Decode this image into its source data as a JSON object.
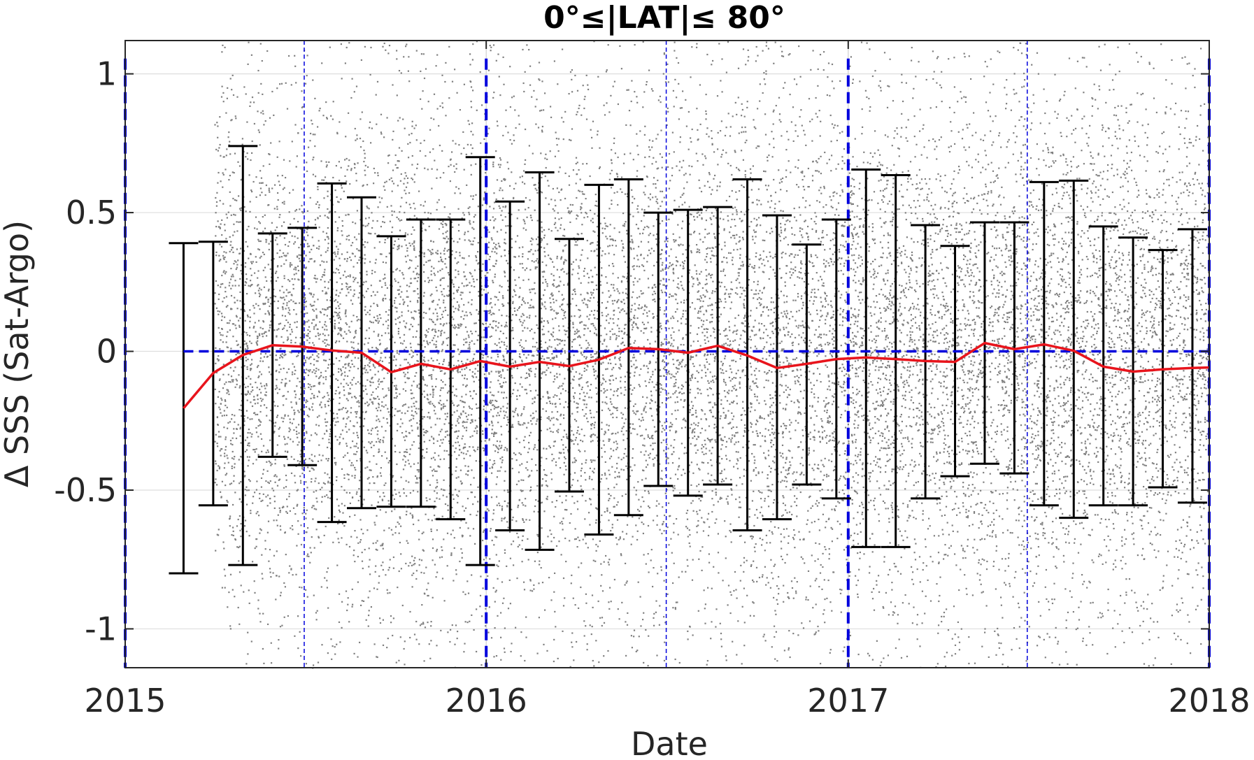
{
  "chart_data": {
    "type": "scatter",
    "title": "0°≤|LAT|≤ 80°",
    "xlabel": "Date",
    "ylabel": "Δ SSS (Sat-Argo)",
    "xlim": [
      "2015-01-01",
      "2018-01-01"
    ],
    "ylim": [
      -1.14,
      1.12
    ],
    "xticks": [
      "2015",
      "2016",
      "2017",
      "2018"
    ],
    "yticks": [
      {
        "value": 1,
        "label": "1"
      },
      {
        "value": 0.5,
        "label": "0.5"
      },
      {
        "value": 0,
        "label": "0"
      },
      {
        "value": -0.5,
        "label": "-0.5"
      },
      {
        "value": -1,
        "label": "-1"
      }
    ],
    "grid": true,
    "scatter_series": {
      "description_color": "#808080",
      "x_range": [
        "2015-04-01",
        "2018-01-01"
      ],
      "y_distribution": "dense cloud, mostly between -1.14 and 1.12, densest near 0"
    },
    "series": [
      {
        "type": "line",
        "color": "#e8141c",
        "x": [
          "2015-03-01",
          "2015-03-31",
          "2015-04-30",
          "2015-05-30",
          "2015-06-29",
          "2015-07-29",
          "2015-08-28",
          "2015-09-27",
          "2015-10-27",
          "2015-11-26",
          "2015-12-26",
          "2016-01-25",
          "2016-02-24",
          "2016-03-25",
          "2016-04-24",
          "2016-05-24",
          "2016-06-23",
          "2016-07-23",
          "2016-08-22",
          "2016-09-21",
          "2016-10-21",
          "2016-11-20",
          "2016-12-20",
          "2017-01-19",
          "2017-02-18",
          "2017-03-20",
          "2017-04-19",
          "2017-05-19",
          "2017-06-18",
          "2017-07-18",
          "2017-08-17",
          "2017-09-16",
          "2017-10-16",
          "2017-11-15",
          "2017-12-15",
          "2018-01-01"
        ],
        "values": [
          -0.205,
          -0.078,
          -0.013,
          0.022,
          0.017,
          0.003,
          -0.005,
          -0.075,
          -0.045,
          -0.065,
          -0.035,
          -0.055,
          -0.038,
          -0.053,
          -0.03,
          0.012,
          0.008,
          -0.005,
          0.02,
          -0.015,
          -0.06,
          -0.045,
          -0.028,
          -0.022,
          -0.028,
          -0.035,
          -0.038,
          0.03,
          0.008,
          0.025,
          0.002,
          -0.055,
          -0.073,
          -0.065,
          -0.06,
          -0.058
        ]
      },
      {
        "type": "errorbar",
        "color": "#000000",
        "x": [
          "2015-03-01",
          "2015-03-31",
          "2015-04-30",
          "2015-05-30",
          "2015-06-29",
          "2015-07-29",
          "2015-08-28",
          "2015-09-27",
          "2015-10-27",
          "2015-11-26",
          "2015-12-26",
          "2016-01-25",
          "2016-02-24",
          "2016-03-25",
          "2016-04-24",
          "2016-05-24",
          "2016-06-23",
          "2016-07-23",
          "2016-08-22",
          "2016-09-21",
          "2016-10-21",
          "2016-11-20",
          "2016-12-20",
          "2017-01-19",
          "2017-02-18",
          "2017-03-20",
          "2017-04-19",
          "2017-05-19",
          "2017-06-18",
          "2017-07-18",
          "2017-08-17",
          "2017-09-16",
          "2017-10-16",
          "2017-11-15",
          "2017-12-15"
        ],
        "upper": [
          0.39,
          0.395,
          0.74,
          0.425,
          0.445,
          0.605,
          0.555,
          0.415,
          0.475,
          0.475,
          0.7,
          0.54,
          0.645,
          0.405,
          0.6,
          0.62,
          0.5,
          0.51,
          0.52,
          0.62,
          0.49,
          0.385,
          0.475,
          0.655,
          0.635,
          0.455,
          0.38,
          0.465,
          0.465,
          0.61,
          0.615,
          0.45,
          0.41,
          0.365,
          0.44
        ],
        "lower": [
          -0.8,
          -0.555,
          -0.77,
          -0.38,
          -0.41,
          -0.615,
          -0.565,
          -0.56,
          -0.56,
          -0.605,
          -0.77,
          -0.645,
          -0.715,
          -0.505,
          -0.66,
          -0.59,
          -0.485,
          -0.52,
          -0.48,
          -0.645,
          -0.605,
          -0.48,
          -0.53,
          -0.705,
          -0.705,
          -0.53,
          -0.45,
          -0.405,
          -0.44,
          -0.555,
          -0.6,
          -0.555,
          -0.555,
          -0.49,
          -0.545
        ]
      }
    ],
    "reference_lines": {
      "horizontal_zero": {
        "value": 0,
        "style": "dashed",
        "color": "#0000dd"
      },
      "year_lines": {
        "dates": [
          "2015-01-01",
          "2016-01-01",
          "2017-01-01",
          "2018-01-01"
        ],
        "style": "thick dashed",
        "color": "#0000dd"
      },
      "half_year_lines": {
        "dates": [
          "2015-07-01",
          "2016-07-01",
          "2017-07-01"
        ],
        "style": "thin dashed",
        "color": "#0000dd"
      }
    }
  }
}
